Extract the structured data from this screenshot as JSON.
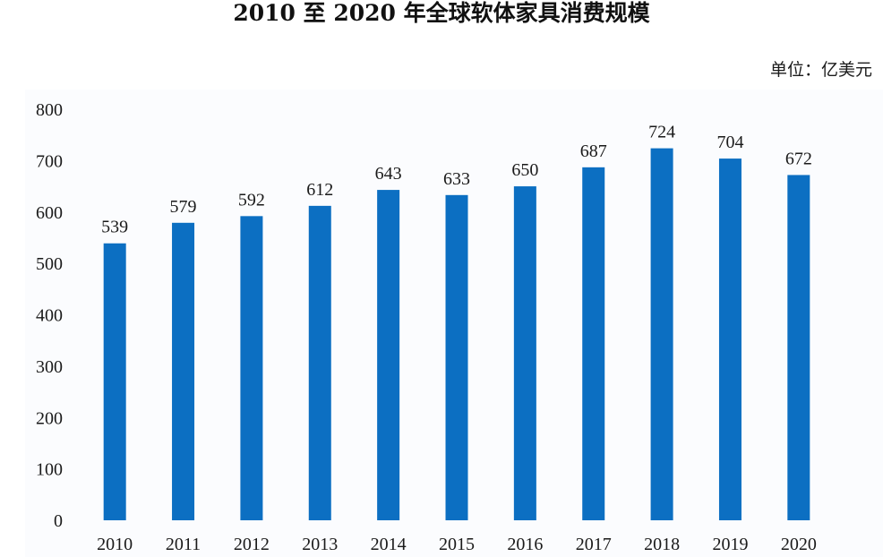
{
  "chart_data": {
    "type": "bar",
    "title": "2010 至 2020 年全球软体家具消费规模",
    "unit": "单位：亿美元",
    "categories": [
      "2010",
      "2011",
      "2012",
      "2013",
      "2014",
      "2015",
      "2016",
      "2017",
      "2018",
      "2019",
      "2020"
    ],
    "values": [
      539,
      579,
      592,
      612,
      643,
      633,
      650,
      687,
      724,
      704,
      672
    ],
    "ylim": [
      0,
      800
    ],
    "yticks": [
      0,
      100,
      200,
      300,
      400,
      500,
      600,
      700,
      800
    ],
    "bar_color": "#0c6fc2",
    "grid": false,
    "legend": "none"
  }
}
